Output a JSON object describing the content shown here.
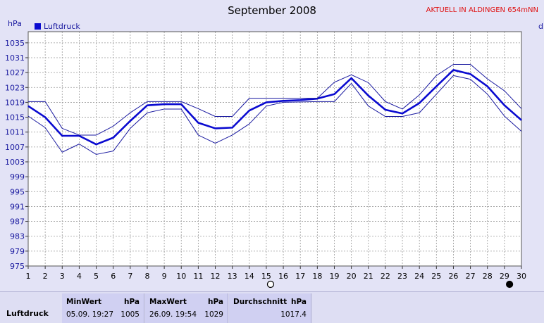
{
  "header": {
    "title": "September 2008",
    "station": "AKTUELL IN ALDINGEN 654mNN",
    "unit": "hPa",
    "cut_label": "d"
  },
  "chart_data": {
    "type": "line",
    "x": [
      1,
      2,
      3,
      4,
      5,
      6,
      7,
      8,
      9,
      10,
      11,
      12,
      13,
      14,
      15,
      16,
      17,
      18,
      19,
      20,
      21,
      22,
      23,
      24,
      25,
      26,
      27,
      28,
      29,
      30
    ],
    "xlim": [
      1,
      30
    ],
    "ylim": [
      975,
      1038
    ],
    "y_ticks": [
      975,
      979,
      983,
      987,
      991,
      995,
      999,
      1003,
      1007,
      1011,
      1015,
      1019,
      1023,
      1027,
      1031,
      1035
    ],
    "grid": true,
    "legend_position": "top-left",
    "legend": [
      "Luftdruck"
    ],
    "series": [
      {
        "name": "Luftdruck",
        "role": "mean",
        "color": "#0a0ad0",
        "values": [
          1018,
          1015,
          1010,
          1010,
          1007.7,
          1009.5,
          1014,
          1018.2,
          1018.5,
          1018.5,
          1013.5,
          1012,
          1012.2,
          1016.8,
          1019,
          1019.4,
          1019.6,
          1020,
          1021.2,
          1025.5,
          1020.8,
          1017,
          1016,
          1018.8,
          1023.3,
          1027.7,
          1026.6,
          1023.3,
          1018.2,
          1014.2
        ]
      },
      {
        "role": "max",
        "color": "#1a1aa0",
        "values": [
          1019.2,
          1019.2,
          1012,
          1010.2,
          1010.2,
          1012.6,
          1016.2,
          1019.2,
          1019.2,
          1019.2,
          1017.3,
          1015.2,
          1015.2,
          1020.1,
          1020.1,
          1020.1,
          1020.1,
          1020.1,
          1024.4,
          1026.4,
          1024.3,
          1019.2,
          1017.2,
          1021,
          1026.2,
          1029.2,
          1029.2,
          1025.3,
          1022.1,
          1017.3
        ]
      },
      {
        "role": "min",
        "color": "#1a1aa0",
        "values": [
          1015.3,
          1012.2,
          1005.6,
          1007.8,
          1005,
          1005.9,
          1012,
          1016.2,
          1017.2,
          1017.2,
          1010.2,
          1008,
          1010.2,
          1013.2,
          1018,
          1019,
          1019.1,
          1019.2,
          1019.2,
          1024.1,
          1018,
          1015.2,
          1015.2,
          1016.2,
          1021.2,
          1026.2,
          1025.2,
          1021.2,
          1015.3,
          1011.2
        ]
      }
    ],
    "markers": [
      {
        "x": 15.25,
        "symbol": "new-moon-outline"
      },
      {
        "x": 29.3,
        "symbol": "full-moon-filled"
      }
    ]
  },
  "stats": {
    "row_label": "Luftdruck",
    "min": {
      "head": "MinWert",
      "unit": "hPa",
      "date": "05.09.  19:27",
      "value": "1005"
    },
    "max": {
      "head": "MaxWert",
      "unit": "hPa",
      "date": "26.09.  19:54",
      "value": "1029"
    },
    "avg": {
      "head": "Durchschnitt",
      "unit": "hPa",
      "value": "1017.4"
    }
  }
}
